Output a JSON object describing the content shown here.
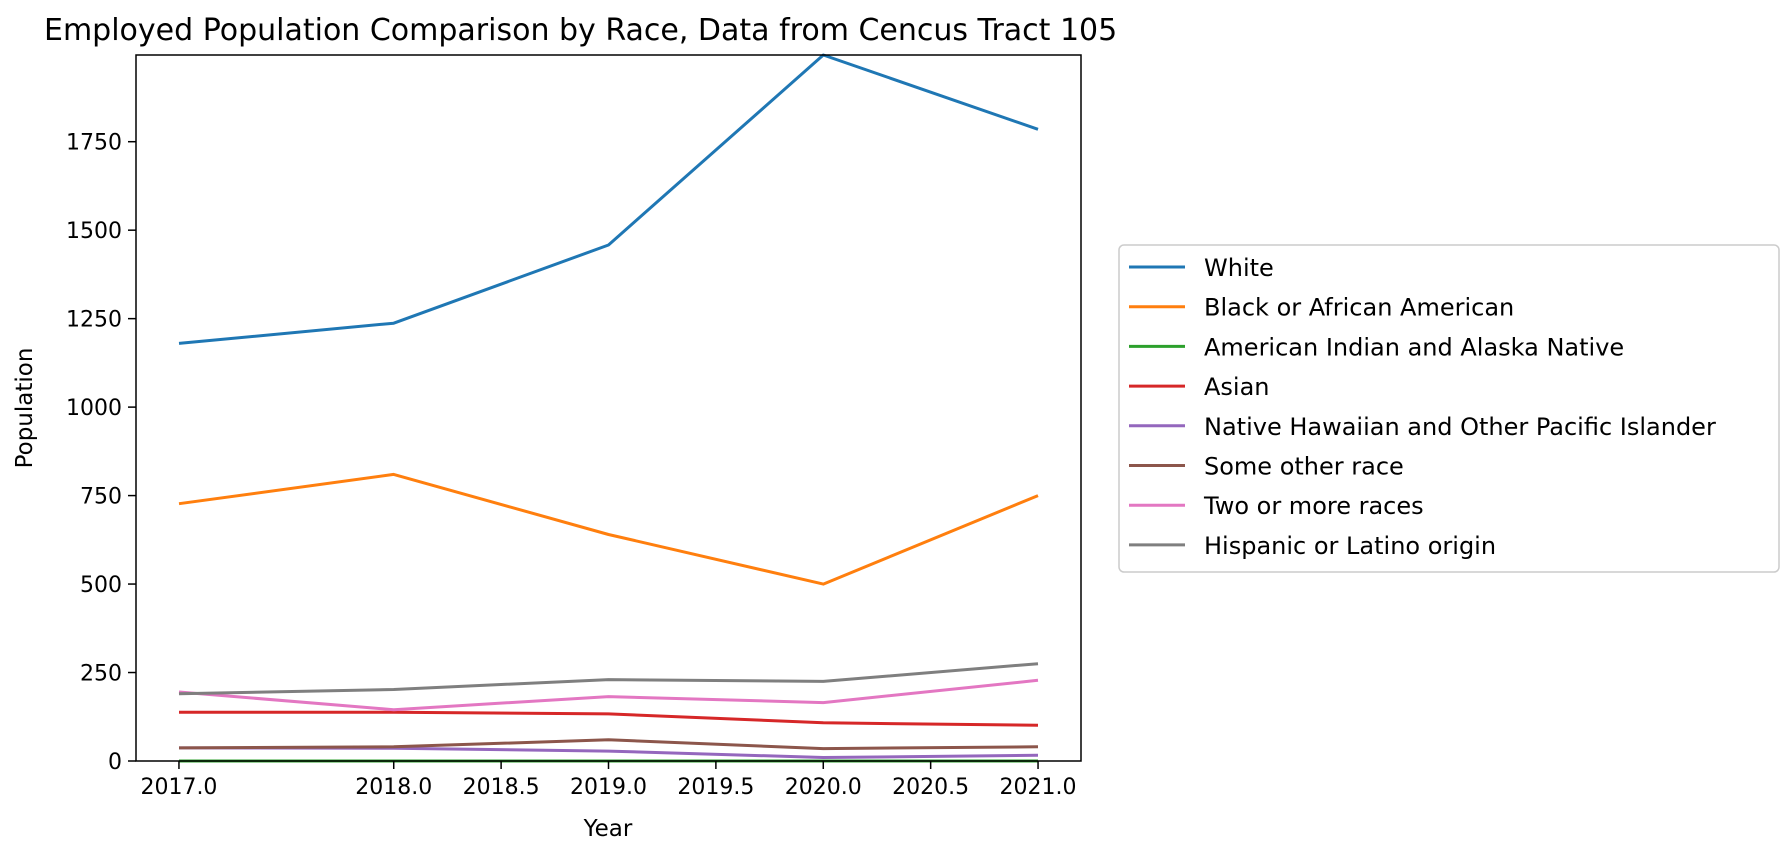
{
  "chart_data": {
    "type": "line",
    "title": "Employed Population Comparison by Race, Data from Cencus Tract 105",
    "xlabel": "Year",
    "ylabel": "Population",
    "xlim": [
      2016.8,
      2021.2
    ],
    "ylim": [
      0,
      1995
    ],
    "x": [
      2017,
      2018,
      2019,
      2020,
      2021
    ],
    "xticks": [
      "2017.0",
      "2018.0",
      "2018.5",
      "2019.0",
      "2019.5",
      "2020.0",
      "2020.5",
      "2021.0"
    ],
    "xtick_values": [
      2017.0,
      2018.0,
      2018.5,
      2019.0,
      2019.5,
      2020.0,
      2020.5,
      2021.0
    ],
    "yticks": [
      "0",
      "250",
      "500",
      "750",
      "1000",
      "1250",
      "1500",
      "1750"
    ],
    "ytick_values": [
      0,
      250,
      500,
      750,
      1000,
      1250,
      1500,
      1750
    ],
    "grid": false,
    "legend_position": "outside-right",
    "series": [
      {
        "name": "White",
        "color": "#1f77b4",
        "values": [
          1180,
          1237,
          1458,
          1995,
          1785
        ]
      },
      {
        "name": "Black or African American",
        "color": "#ff7f0e",
        "values": [
          727,
          810,
          640,
          500,
          750
        ]
      },
      {
        "name": "American Indian and Alaska Native",
        "color": "#2ca02c",
        "values": [
          0,
          0,
          0,
          0,
          0
        ]
      },
      {
        "name": "Asian",
        "color": "#d62728",
        "values": [
          138,
          138,
          133,
          108,
          101
        ]
      },
      {
        "name": "Native Hawaiian and Other Pacific Islander",
        "color": "#9467bd",
        "values": [
          37,
          36,
          28,
          10,
          16
        ]
      },
      {
        "name": "Some other race",
        "color": "#8c564b",
        "values": [
          37,
          40,
          60,
          35,
          40
        ]
      },
      {
        "name": "Two or more races",
        "color": "#e377c2",
        "values": [
          195,
          145,
          182,
          165,
          228
        ]
      },
      {
        "name": "Hispanic or Latino origin",
        "color": "#7f7f7f",
        "values": [
          190,
          202,
          230,
          225,
          275
        ]
      }
    ]
  }
}
